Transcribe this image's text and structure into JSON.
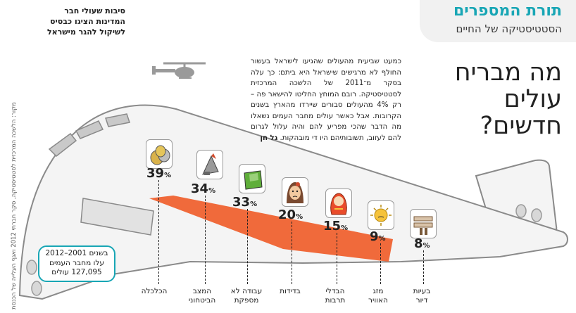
{
  "header": {
    "series_title": "תורת המספרים",
    "series_subtitle": "הסטטיסטיקה של החיים"
  },
  "side_caption": {
    "lines": [
      "סיבות שעולי חבר",
      "המדינות הציגו כבסיס",
      "לשיקול להגר מישראל"
    ]
  },
  "main_title": {
    "line1": "מה מבריח",
    "line2": "עולים חדשים?"
  },
  "article": {
    "text": "כמעט שביעית מהעולים שהגיעו לישראל בעשור החולף לא מרגישים שישראל היא ביתם: כך עלה בסקר מ־2011 של הלשכה המרכזית לסטטיסטיקה. רובם המוחץ החליטו להישאר פה – רק 4% מהעולים סבורים שיירדו מהארץ בשנים הקרובות. אבל כאשר עולים מחבר העמים נשאלו מה הדבר שהכי מפריע להם והיה עלול לגרום להם לעזוב, תשובותיהם היו די מובהקות.",
    "author": "גל חן"
  },
  "credit": "מקור: הלשכה המרכזית לסטטיסטיקה, סקר חברתי 2012 ואגף העלייה של הכנסת",
  "callout": {
    "lines": [
      "בשנים 2001–2012",
      "עלו מחבר העמים",
      "127,095 עולים"
    ]
  },
  "colors": {
    "accent": "#18a6b5",
    "stripe": "#f06a3b",
    "plane_body": "#f4f4f4",
    "outline": "#8a8a8a"
  },
  "chart_data": {
    "type": "bar",
    "categories": [
      "הכלכלה",
      "המצב הביטחוני",
      "עבודה לא מספקת",
      "בדידות",
      "הבדלי תרבות",
      "מזג האוויר",
      "בעיות דיור"
    ],
    "values": [
      39,
      34,
      33,
      20,
      15,
      9,
      8
    ],
    "unit": "%"
  },
  "items": [
    {
      "pct": "39",
      "label1": "הכלכלה",
      "label2": "",
      "icon": "coins-icon"
    },
    {
      "pct": "34",
      "label1": "המצב",
      "label2": "הביטחוני",
      "icon": "missile-icon"
    },
    {
      "pct": "33",
      "label1": "עבודה לא",
      "label2": "מספקת",
      "icon": "money-bag-icon"
    },
    {
      "pct": "20",
      "label1": "בדידות",
      "label2": "",
      "icon": "sad-woman-icon"
    },
    {
      "pct": "15",
      "label1": "הבדלי",
      "label2": "תרבות",
      "icon": "matryoshka-icon"
    },
    {
      "pct": "9",
      "label1": "מזג",
      "label2": "האוויר",
      "icon": "sun-icon"
    },
    {
      "pct": "8",
      "label1": "בעיות",
      "label2": "דיור",
      "icon": "wood-planks-icon"
    }
  ],
  "percent_sign": "%"
}
